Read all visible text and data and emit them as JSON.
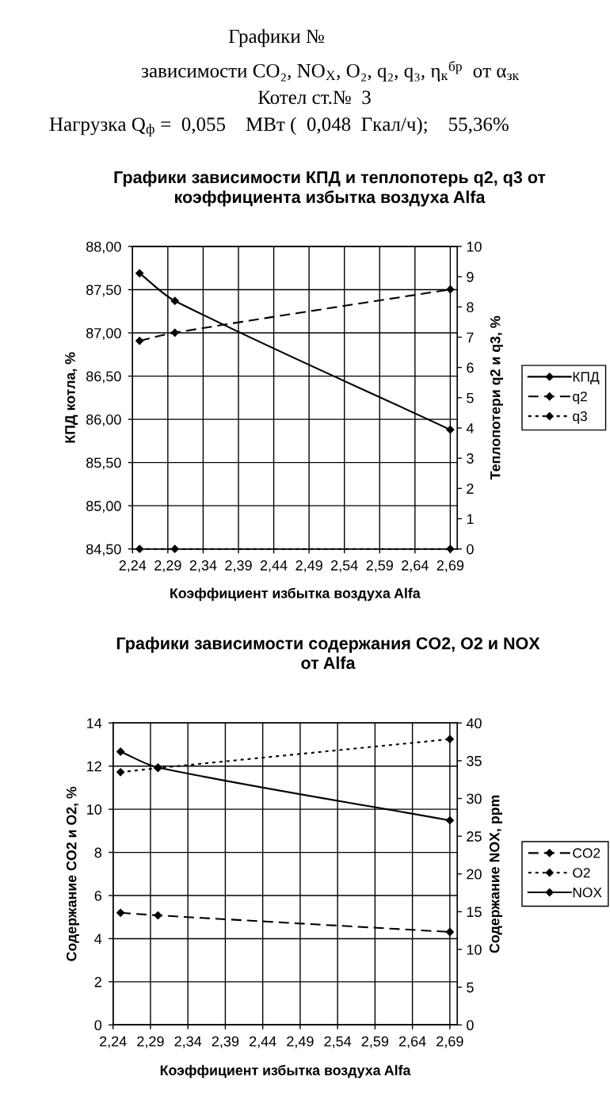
{
  "chart_data": [
    {
      "type": "other",
      "title": "Графики №",
      "subtitle": "зависимости CO₂, NO$_{X}$, O₂, q₂, q₃, η$_{к}$$^{бр}$  от α$_{зк}$",
      "annotations": [
        "Котел ст.№  3",
        "Нагрузка Q$_{ф}$ =  0,055    МВт (  0,048  Гкал/ч);    55,36%"
      ]
    },
    {
      "type": "line",
      "title": "Графики зависимости КПД и теплопотерь q2, q3 от\nкоэффициента избытка воздуха Alfa",
      "xlabel": "Коэффициент избытка воздуха Alfa",
      "ylabel": "КПД котла, %",
      "y2label": "Теплопотери q2 и q3, %",
      "x": [
        2.25,
        2.3,
        2.69
      ],
      "series": [
        {
          "name": "КПД",
          "color": "#000000",
          "line_style": "solid",
          "values": [
            87.69,
            87.37,
            85.88
          ]
        },
        {
          "name": "q2",
          "color": "#000000",
          "line_style": "dashed",
          "axis": "y2",
          "values": [
            6.88,
            7.15,
            8.58
          ]
        },
        {
          "name": "q3",
          "color": "#000000",
          "line_style": "dotted",
          "axis": "y2",
          "values": [
            0,
            0,
            0
          ]
        }
      ],
      "xlim": [
        2.24,
        2.7
      ],
      "xticks": [
        {
          "value": 2.24,
          "label": "2,24"
        },
        {
          "value": 2.29,
          "label": "2,29"
        },
        {
          "value": 2.34,
          "label": "2,34"
        },
        {
          "value": 2.39,
          "label": "2,39"
        },
        {
          "value": 2.44,
          "label": "2,44"
        },
        {
          "value": 2.49,
          "label": "2,49"
        },
        {
          "value": 2.54,
          "label": "2,54"
        },
        {
          "value": 2.59,
          "label": "2,59"
        },
        {
          "value": 2.64,
          "label": "2,64"
        },
        {
          "value": 2.69,
          "label": "2,69"
        }
      ],
      "ylim": [
        84.5,
        88.0
      ],
      "yticks": [
        {
          "value": 84.5,
          "label": "84,50"
        },
        {
          "value": 85.0,
          "label": "85,00"
        },
        {
          "value": 85.5,
          "label": "85,50"
        },
        {
          "value": 86.0,
          "label": "86,00"
        },
        {
          "value": 86.5,
          "label": "86,50"
        },
        {
          "value": 87.0,
          "label": "87,00"
        },
        {
          "value": 87.5,
          "label": "87,50"
        },
        {
          "value": 88.0,
          "label": "88,00"
        }
      ],
      "y2lim": [
        0,
        10
      ],
      "y2ticks": [
        0,
        1,
        2,
        3,
        4,
        5,
        6,
        7,
        8,
        9,
        10
      ],
      "grid": true,
      "legend": "right",
      "marker": "diamond"
    },
    {
      "type": "line",
      "title": "Графики зависимости содержания CO2, O2 и NOX\nот Alfa",
      "xlabel": "Коэффициент избытка воздуха Alfa",
      "ylabel": "Содержание CO2 и O2, %",
      "y2label": "Содержание NOX, ppm",
      "x": [
        2.25,
        2.3,
        2.69
      ],
      "series": [
        {
          "name": "CO2",
          "color": "#000000",
          "line_style": "dashed",
          "values": [
            5.2,
            5.08,
            4.31
          ]
        },
        {
          "name": "O2",
          "color": "#000000",
          "line_style": "dotted",
          "values": [
            11.72,
            11.91,
            13.25
          ]
        },
        {
          "name": "NOX",
          "color": "#000000",
          "line_style": "solid",
          "axis": "y2",
          "values": [
            36.2,
            34.1,
            27.1
          ]
        }
      ],
      "xlim": [
        2.24,
        2.7
      ],
      "xticks": [
        {
          "value": 2.24,
          "label": "2,24"
        },
        {
          "value": 2.29,
          "label": "2,29"
        },
        {
          "value": 2.34,
          "label": "2,34"
        },
        {
          "value": 2.39,
          "label": "2,39"
        },
        {
          "value": 2.44,
          "label": "2,44"
        },
        {
          "value": 2.49,
          "label": "2,49"
        },
        {
          "value": 2.54,
          "label": "2,54"
        },
        {
          "value": 2.59,
          "label": "2,59"
        },
        {
          "value": 2.64,
          "label": "2,64"
        },
        {
          "value": 2.69,
          "label": "2,69"
        }
      ],
      "ylim": [
        0,
        14
      ],
      "yticks": [
        0,
        2,
        4,
        6,
        8,
        10,
        12,
        14
      ],
      "y2lim": [
        0,
        40
      ],
      "y2ticks": [
        0,
        5,
        10,
        15,
        20,
        25,
        30,
        35,
        40
      ],
      "grid": true,
      "legend": "right",
      "marker": "diamond"
    }
  ]
}
